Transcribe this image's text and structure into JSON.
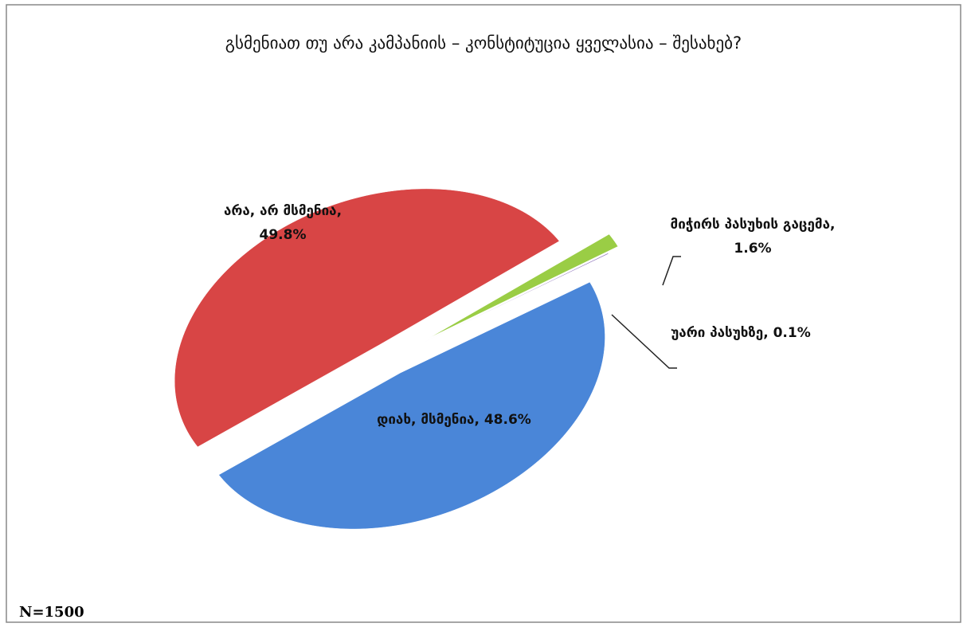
{
  "chart_data": {
    "type": "pie",
    "title": "გსმენიათ თუ არა კამპანიის – კონსტიტუცია ყველასია – შესახებ?",
    "values": [
      48.6,
      49.8,
      1.6,
      0.1
    ],
    "value_labels": [
      "დიახ, მსმენია, 48.6%",
      "არა, არ მსმენია, 49.8%",
      "მიჭირს პასუხის გაცემა, 1.6%",
      "უარი პასუხზე, 0.1%"
    ],
    "colors": [
      "#4a86d8",
      "#d84545",
      "#9acd45",
      "#8a6fb8"
    ],
    "note": "N=1500"
  }
}
